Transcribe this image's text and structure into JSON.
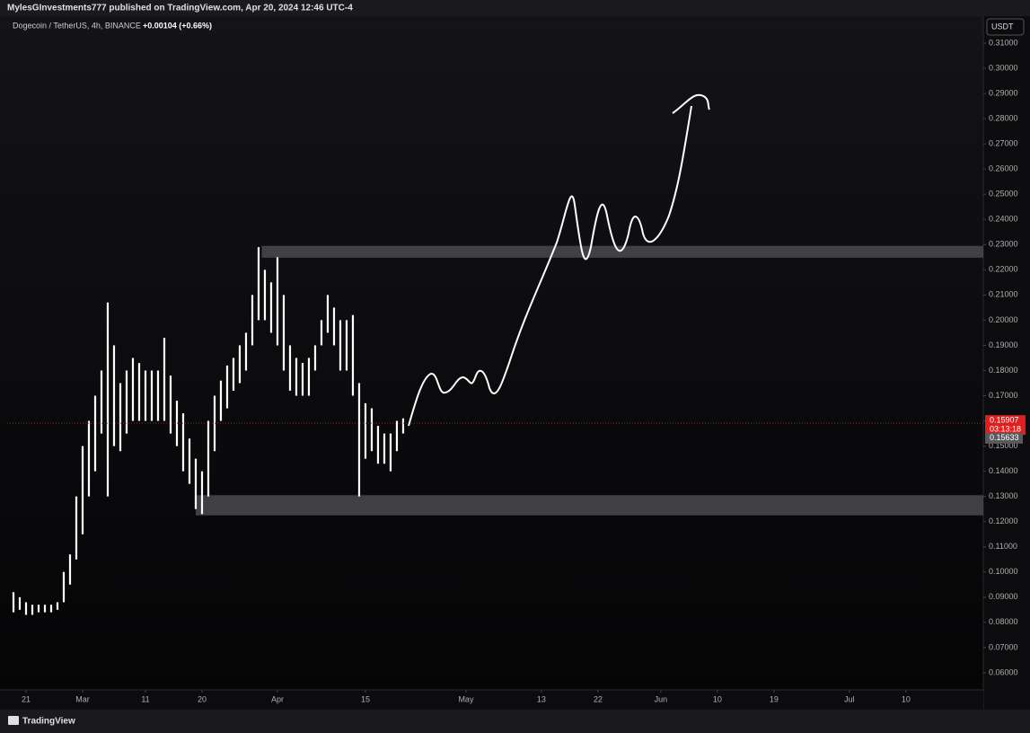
{
  "header": {
    "publisher": "MylesGInvestments777 published on TradingView.com, Apr 20, 2024 12:46 UTC-4"
  },
  "footer": {
    "brand": "TradingView"
  },
  "chart_data": {
    "type": "hilo",
    "title": "Dogecoin / TetherUS, 4h, BINANCE",
    "change": "+0.00104 (+0.66%)",
    "currency": "USDT",
    "color": "#ffffff",
    "x": [
      -2,
      -1,
      0,
      1,
      2,
      3,
      4,
      5,
      6,
      7,
      8,
      9,
      10,
      11,
      12,
      13,
      14,
      15,
      16,
      17,
      18,
      19,
      20,
      21,
      22,
      23,
      24,
      25,
      26,
      27,
      28,
      29,
      30,
      31,
      32,
      33,
      34,
      35,
      36,
      37,
      38,
      39,
      40,
      41,
      42,
      43,
      44,
      45,
      46,
      47,
      48,
      49,
      50,
      51,
      52,
      53,
      54,
      55,
      56,
      57,
      58,
      59,
      60
    ],
    "high": [
      0.092,
      0.09,
      0.088,
      0.087,
      0.087,
      0.087,
      0.087,
      0.088,
      0.1,
      0.107,
      0.13,
      0.15,
      0.16,
      0.17,
      0.18,
      0.207,
      0.19,
      0.175,
      0.18,
      0.185,
      0.183,
      0.18,
      0.18,
      0.18,
      0.193,
      0.178,
      0.168,
      0.163,
      0.153,
      0.145,
      0.14,
      0.16,
      0.17,
      0.176,
      0.182,
      0.185,
      0.19,
      0.195,
      0.21,
      0.229,
      0.22,
      0.215,
      0.225,
      0.21,
      0.19,
      0.185,
      0.183,
      0.185,
      0.19,
      0.2,
      0.21,
      0.205,
      0.2,
      0.2,
      0.202,
      0.175,
      0.167,
      0.165,
      0.158,
      0.155,
      0.155,
      0.16,
      0.161
    ],
    "low": [
      0.084,
      0.085,
      0.083,
      0.083,
      0.084,
      0.084,
      0.084,
      0.085,
      0.088,
      0.095,
      0.105,
      0.115,
      0.13,
      0.14,
      0.155,
      0.13,
      0.15,
      0.148,
      0.155,
      0.16,
      0.16,
      0.16,
      0.16,
      0.16,
      0.16,
      0.155,
      0.15,
      0.14,
      0.135,
      0.125,
      0.123,
      0.13,
      0.148,
      0.16,
      0.165,
      0.172,
      0.175,
      0.18,
      0.19,
      0.2,
      0.2,
      0.195,
      0.19,
      0.18,
      0.172,
      0.17,
      0.17,
      0.17,
      0.18,
      0.19,
      0.195,
      0.19,
      0.18,
      0.18,
      0.17,
      0.13,
      0.145,
      0.148,
      0.143,
      0.143,
      0.14,
      0.148,
      0.155
    ],
    "zones": [
      {
        "start": 37.5,
        "top": 0.2295,
        "bottom": 0.2248
      },
      {
        "start": 27,
        "top": 0.1305,
        "bottom": 0.1225
      }
    ],
    "last_price": {
      "value": 0.15907,
      "label": "0.15907"
    },
    "countdown": "03:13:18",
    "second_price": {
      "value": 0.15633,
      "label": "0.15633"
    },
    "xlim": [
      -3,
      152.3
    ],
    "ylim": [
      0.0532,
      0.3207
    ],
    "xticks": [
      {
        "value": 0,
        "label": "21"
      },
      {
        "value": 9,
        "label": "Mar"
      },
      {
        "value": 19,
        "label": "11"
      },
      {
        "value": 28,
        "label": "20"
      },
      {
        "value": 40,
        "label": "Apr"
      },
      {
        "value": 54,
        "label": "15"
      },
      {
        "value": 70,
        "label": "May"
      },
      {
        "value": 82,
        "label": "13"
      },
      {
        "value": 91,
        "label": "22"
      },
      {
        "value": 101,
        "label": "Jun"
      },
      {
        "value": 110,
        "label": "10"
      },
      {
        "value": 119,
        "label": "19"
      },
      {
        "value": 131,
        "label": "Jul"
      },
      {
        "value": 140,
        "label": "10"
      }
    ],
    "yticks": [
      {
        "value": 0.06,
        "label": "0.06000"
      },
      {
        "value": 0.07,
        "label": "0.07000"
      },
      {
        "value": 0.08,
        "label": "0.08000"
      },
      {
        "value": 0.09,
        "label": "0.09000"
      },
      {
        "value": 0.1,
        "label": "0.10000"
      },
      {
        "value": 0.11,
        "label": "0.11000"
      },
      {
        "value": 0.12,
        "label": "0.12000"
      },
      {
        "value": 0.13,
        "label": "0.13000"
      },
      {
        "value": 0.14,
        "label": "0.14000"
      },
      {
        "value": 0.15,
        "label": "0.15000"
      },
      {
        "value": 0.16,
        "label": "0.16000"
      },
      {
        "value": 0.17,
        "label": "0.17000"
      },
      {
        "value": 0.18,
        "label": "0.18000"
      },
      {
        "value": 0.19,
        "label": "0.19000"
      },
      {
        "value": 0.2,
        "label": "0.20000"
      },
      {
        "value": 0.21,
        "label": "0.21000"
      },
      {
        "value": 0.22,
        "label": "0.22000"
      },
      {
        "value": 0.23,
        "label": "0.23000"
      },
      {
        "value": 0.24,
        "label": "0.24000"
      },
      {
        "value": 0.25,
        "label": "0.25000"
      },
      {
        "value": 0.26,
        "label": "0.26000"
      },
      {
        "value": 0.27,
        "label": "0.27000"
      },
      {
        "value": 0.28,
        "label": "0.28000"
      },
      {
        "value": 0.29,
        "label": "0.29000"
      },
      {
        "value": 0.3,
        "label": "0.30000"
      },
      {
        "value": 0.31,
        "label": "0.31000"
      }
    ]
  }
}
